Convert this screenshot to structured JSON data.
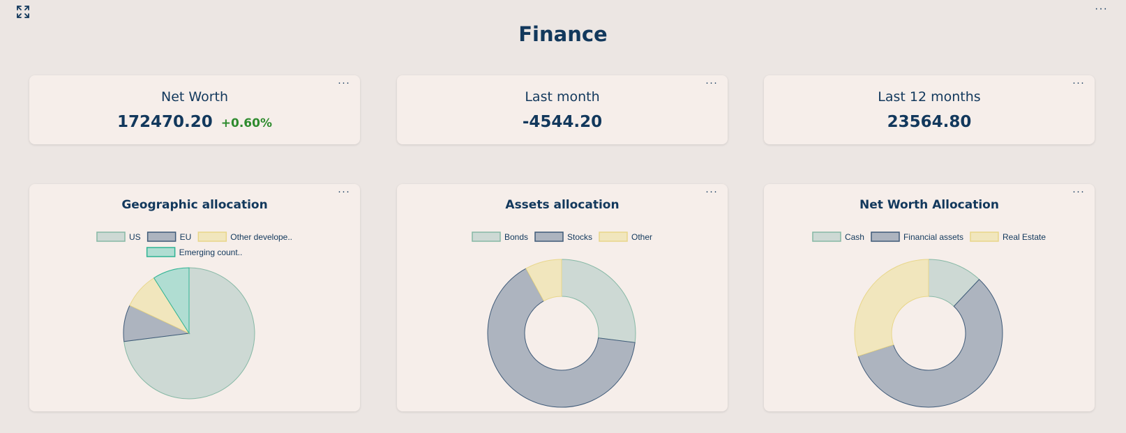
{
  "page": {
    "title": "Finance"
  },
  "kpis": [
    {
      "title": "Net Worth",
      "value": "172470.20",
      "delta": "+0.60%",
      "delta_color": "#2e8b2e"
    },
    {
      "title": "Last month",
      "value": "-4544.20"
    },
    {
      "title": "Last 12 months",
      "value": "23564.80"
    }
  ],
  "menu_glyph": "···",
  "chart_data": [
    {
      "type": "pie",
      "title": "Geographic allocation",
      "categories": [
        "US",
        "EU",
        "Other develope..",
        "Emerging count.."
      ],
      "values": [
        73,
        9,
        9,
        9
      ],
      "colors": [
        "#cdd9d4",
        "#adb4bf",
        "#f1e6bd",
        "#b0ddd2"
      ],
      "strokes": [
        "#86b8a5",
        "#3f5a78",
        "#e8d68a",
        "#2fb393"
      ],
      "legend": "top"
    },
    {
      "type": "pie",
      "donut": true,
      "title": "Assets allocation",
      "categories": [
        "Bonds",
        "Stocks",
        "Other"
      ],
      "values": [
        27,
        65,
        8
      ],
      "colors": [
        "#cdd9d4",
        "#adb4bf",
        "#f1e6bd"
      ],
      "strokes": [
        "#86b8a5",
        "#3f5a78",
        "#e8d68a"
      ],
      "legend": "top"
    },
    {
      "type": "pie",
      "donut": true,
      "title": "Net Worth Allocation",
      "categories": [
        "Cash",
        "Financial assets",
        "Real Estate"
      ],
      "values": [
        12,
        58,
        30
      ],
      "colors": [
        "#cdd9d4",
        "#adb4bf",
        "#f1e6bd"
      ],
      "strokes": [
        "#86b8a5",
        "#3f5a78",
        "#e8d68a"
      ],
      "legend": "top"
    }
  ]
}
